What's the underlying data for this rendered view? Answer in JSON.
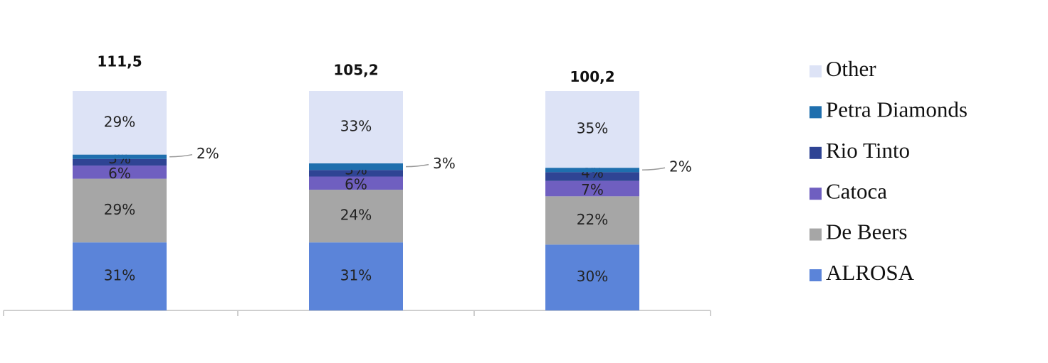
{
  "chart_data": {
    "type": "stacked-bar",
    "categories": [
      null,
      null,
      null
    ],
    "ylim": [
      0,
      100
    ],
    "series": [
      {
        "name": "ALROSA",
        "color": "#5b84d9",
        "values": [
          31,
          31,
          30
        ],
        "value_labels": [
          "31%",
          "31%",
          "30%"
        ]
      },
      {
        "name": "De Beers",
        "color": "#a6a6a6",
        "values": [
          29,
          24,
          22
        ],
        "value_labels": [
          "29%",
          "24%",
          "22%"
        ]
      },
      {
        "name": "Catoca",
        "color": "#6f5fc0",
        "values": [
          6,
          6,
          7
        ],
        "value_labels": [
          "6%",
          "6%",
          "7%"
        ]
      },
      {
        "name": "Rio Tinto",
        "color": "#2f4494",
        "values": [
          3,
          3,
          4
        ],
        "value_labels": [
          "3%",
          "3%",
          "4%"
        ]
      },
      {
        "name": "Petra Diamonds",
        "color": "#1f6fae",
        "values": [
          2,
          3,
          2
        ],
        "value_labels": [
          "2%",
          "3%",
          "2%"
        ]
      },
      {
        "name": "Other",
        "color": "#dde3f6",
        "values": [
          29,
          33,
          35
        ],
        "value_labels": [
          "29%",
          "33%",
          "35%"
        ]
      }
    ],
    "totals": {
      "values": [
        111.5,
        105.2,
        100.2
      ],
      "value_labels": [
        "111,5",
        "105,2",
        "100,2"
      ]
    },
    "legend": "right"
  }
}
